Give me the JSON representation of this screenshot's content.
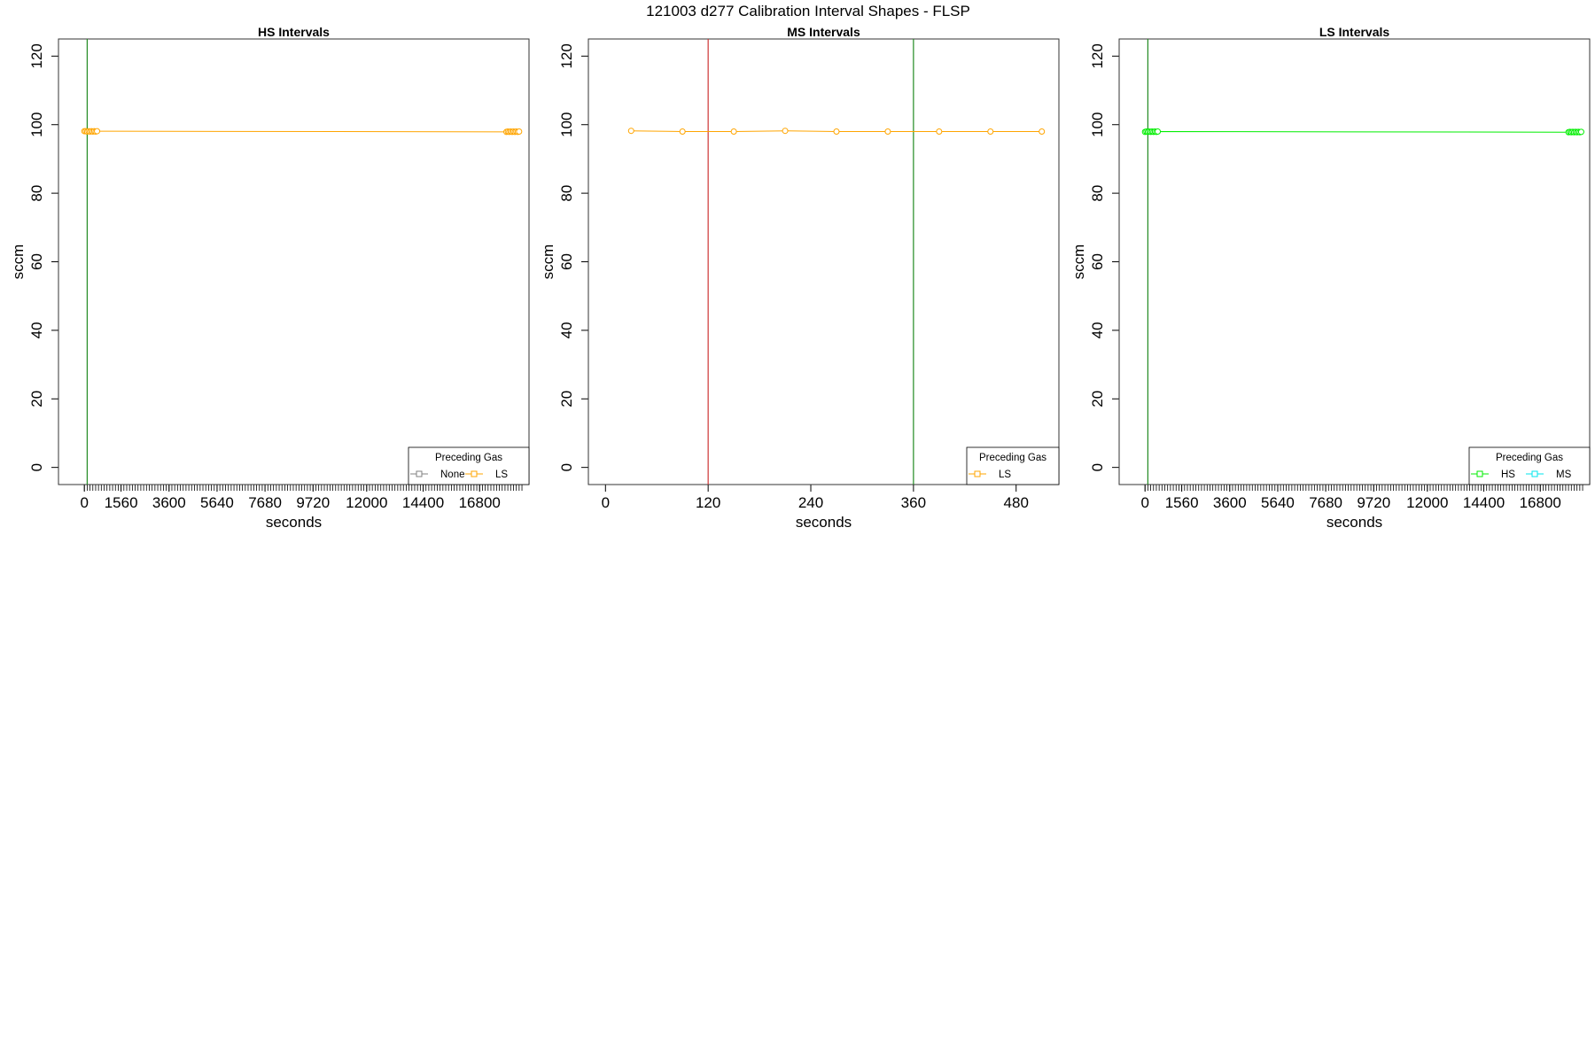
{
  "figure": {
    "title": "121003   d277   Calibration Interval Shapes - FLSP"
  },
  "chart_data": [
    {
      "type": "line",
      "title": "HS Intervals",
      "xlabel": "seconds",
      "ylabel": "sccm",
      "xlim": [
        -1100,
        18900
      ],
      "ylim": [
        -5,
        125
      ],
      "x_ticks": [
        0,
        1560,
        3600,
        5640,
        7680,
        9720,
        12000,
        14400,
        16800
      ],
      "y_ticks": [
        0,
        20,
        40,
        60,
        80,
        100,
        120
      ],
      "minor_x_ticks": {
        "start": 0,
        "end": 18600,
        "step": 120
      },
      "grid": false,
      "vlines": [
        {
          "x": 120,
          "color": "#228B22"
        }
      ],
      "series": [
        {
          "name": "LS",
          "color": "#FFA500",
          "x": [
            0,
            60,
            120,
            180,
            240,
            300,
            360,
            420,
            480,
            540,
            17940,
            18000,
            18060,
            18120,
            18180,
            18240,
            18300,
            18360,
            18420,
            18480
          ],
          "y": [
            98.1,
            98.1,
            98.0,
            98.1,
            98.0,
            98.1,
            98.0,
            98.1,
            98.0,
            98.1,
            97.9,
            98.0,
            97.9,
            98.0,
            97.9,
            98.0,
            97.9,
            98.0,
            97.9,
            98.0
          ]
        }
      ],
      "legend": {
        "title": "Preceding Gas",
        "position": "bottom-right",
        "entries": [
          {
            "label": "None",
            "color": "#808080"
          },
          {
            "label": "LS",
            "color": "#FFA500"
          }
        ]
      }
    },
    {
      "type": "line",
      "title": "MS Intervals",
      "xlabel": "seconds",
      "ylabel": "sccm",
      "xlim": [
        -20,
        530
      ],
      "ylim": [
        -5,
        125
      ],
      "x_ticks": [
        0,
        120,
        240,
        360,
        480
      ],
      "y_ticks": [
        0,
        20,
        40,
        60,
        80,
        100,
        120
      ],
      "grid": false,
      "vlines": [
        {
          "x": 120,
          "color": "#CD3333"
        },
        {
          "x": 360,
          "color": "#228B22"
        }
      ],
      "series": [
        {
          "name": "LS",
          "color": "#FFA500",
          "x": [
            30,
            90,
            150,
            210,
            270,
            330,
            390,
            450,
            510
          ],
          "y": [
            98.2,
            98.0,
            98.0,
            98.2,
            98.0,
            98.0,
            98.0,
            98.0,
            98.0
          ]
        }
      ],
      "legend": {
        "title": "Preceding Gas",
        "position": "bottom-right",
        "entries": [
          {
            "label": "LS",
            "color": "#FFA500"
          }
        ]
      }
    },
    {
      "type": "line",
      "title": "LS Intervals",
      "xlabel": "seconds",
      "ylabel": "sccm",
      "xlim": [
        -1100,
        18900
      ],
      "ylim": [
        -5,
        125
      ],
      "x_ticks": [
        0,
        1560,
        3600,
        5640,
        7680,
        9720,
        12000,
        14400,
        16800
      ],
      "y_ticks": [
        0,
        20,
        40,
        60,
        80,
        100,
        120
      ],
      "minor_x_ticks": {
        "start": 0,
        "end": 18600,
        "step": 120
      },
      "grid": false,
      "vlines": [
        {
          "x": 120,
          "color": "#228B22"
        }
      ],
      "series": [
        {
          "name": "HS",
          "color": "#00EE00",
          "x": [
            0,
            60,
            120,
            180,
            240,
            300,
            360,
            420,
            480,
            540,
            18000,
            18060,
            18120,
            18180,
            18240,
            18300,
            18360,
            18420,
            18480,
            18540
          ],
          "y": [
            97.9,
            98.0,
            97.9,
            98.0,
            97.9,
            98.0,
            97.9,
            98.0,
            97.9,
            98.0,
            97.8,
            97.9,
            97.8,
            97.9,
            97.8,
            97.9,
            97.8,
            97.9,
            97.8,
            97.9
          ]
        }
      ],
      "legend": {
        "title": "Preceding Gas",
        "position": "bottom-right",
        "entries": [
          {
            "label": "HS",
            "color": "#00EE00"
          },
          {
            "label": "MS",
            "color": "#00E5EE"
          }
        ]
      }
    }
  ]
}
